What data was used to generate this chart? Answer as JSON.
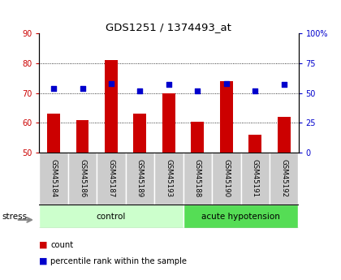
{
  "title": "GDS1251 / 1374493_at",
  "samples": [
    "GSM45184",
    "GSM45186",
    "GSM45187",
    "GSM45189",
    "GSM45193",
    "GSM45188",
    "GSM45190",
    "GSM45191",
    "GSM45192"
  ],
  "counts": [
    63,
    61,
    81,
    63,
    70,
    60.5,
    74,
    56,
    62
  ],
  "percentiles_pct": [
    54,
    54,
    58,
    52,
    57,
    52,
    58,
    52,
    57
  ],
  "ylim_left": [
    50,
    90
  ],
  "ylim_right": [
    0,
    100
  ],
  "yticks_left": [
    50,
    60,
    70,
    80,
    90
  ],
  "yticks_right": [
    0,
    25,
    50,
    75,
    100
  ],
  "ytick_labels_right": [
    "0",
    "25",
    "50",
    "75",
    "100%"
  ],
  "bar_color": "#cc0000",
  "dot_color": "#0000cc",
  "bar_bottom": 50,
  "groups": [
    {
      "label": "control",
      "start": 0,
      "end": 5,
      "color": "#ccffcc"
    },
    {
      "label": "acute hypotension",
      "start": 5,
      "end": 9,
      "color": "#55dd55"
    }
  ],
  "stress_label": "stress",
  "legend_items": [
    {
      "color": "#cc0000",
      "label": "count"
    },
    {
      "color": "#0000cc",
      "label": "percentile rank within the sample"
    }
  ],
  "tick_label_area_color": "#cccccc",
  "grid_yticks": [
    60,
    70,
    80
  ],
  "bar_width": 0.45
}
